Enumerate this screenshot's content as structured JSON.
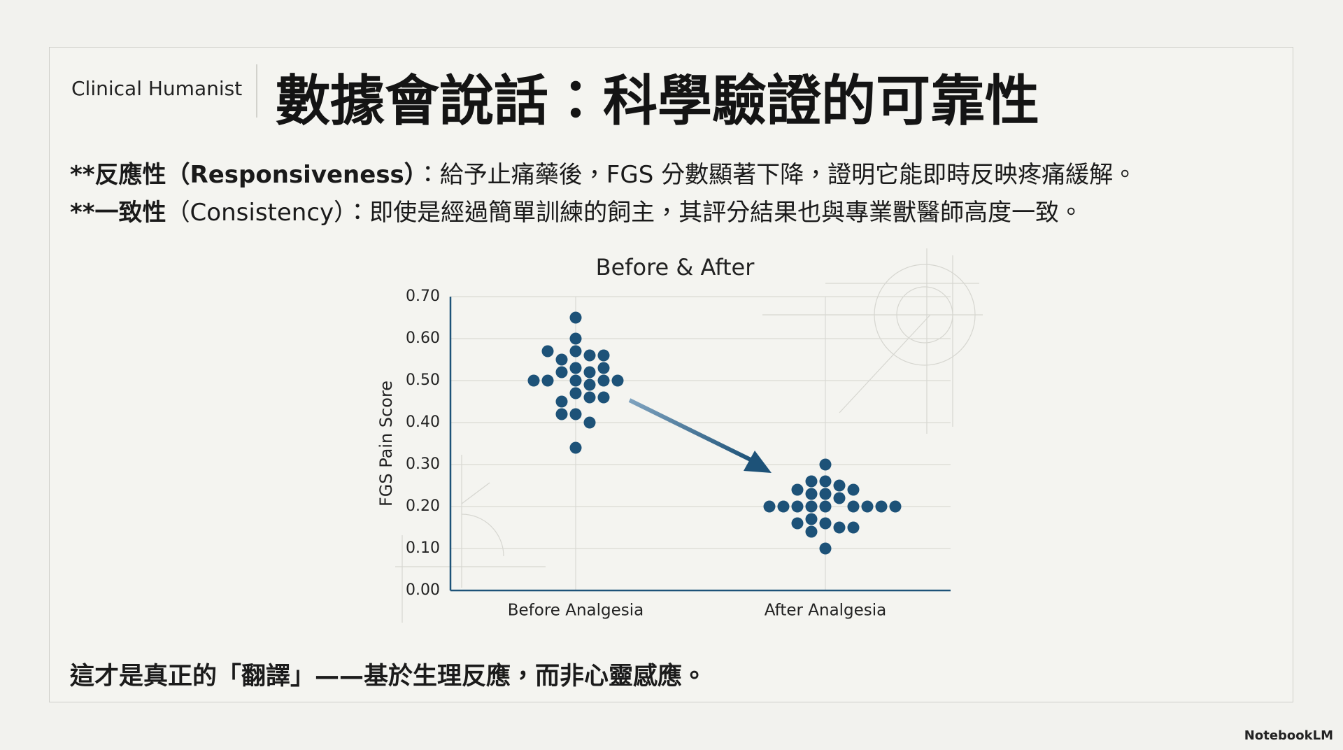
{
  "header": {
    "brand": "Clinical Humanist",
    "title": "數據會說話：科學驗證的可靠性"
  },
  "body": [
    {
      "bold": "**反應性（Responsiveness）",
      "text": "：給予止痛藥後，FGS 分數顯著下降，證明它能即時反映疼痛緩解。"
    },
    {
      "bold": "**一致性",
      "text": "（Consistency）：即使是經過簡單訓練的飼主，其評分結果也與專業獸醫師高度一致。"
    }
  ],
  "footer": "這才是真正的「翻譯」——基於生理反應，而非心靈感應。",
  "watermark": "NotebookLM",
  "chart_data": {
    "type": "strip",
    "title": "Before & After",
    "y_label": "FGS Pain Score",
    "categories": [
      "Before Analgesia",
      "After Analgesia"
    ],
    "values": [
      [
        0.65,
        0.6,
        0.57,
        0.56,
        0.55,
        0.56,
        0.57,
        0.53,
        0.52,
        0.52,
        0.53,
        0.5,
        0.5,
        0.49,
        0.5,
        0.5,
        0.5,
        0.47,
        0.46,
        0.45,
        0.46,
        0.42,
        0.4,
        0.42,
        0.34
      ],
      [
        0.3,
        0.26,
        0.25,
        0.26,
        0.24,
        0.23,
        0.22,
        0.23,
        0.24,
        0.2,
        0.2,
        0.2,
        0.2,
        0.2,
        0.2,
        0.2,
        0.2,
        0.2,
        0.16,
        0.15,
        0.17,
        0.15,
        0.16,
        0.14,
        0.1
      ]
    ],
    "color": "#1d5278",
    "ylim": [
      0,
      0.7
    ],
    "yticks": [
      {
        "value": 0,
        "label": "0.00"
      },
      {
        "value": 0.1,
        "label": "0.10"
      },
      {
        "value": 0.2,
        "label": "0.20"
      },
      {
        "value": 0.3,
        "label": "0.30"
      },
      {
        "value": 0.4,
        "label": "0.40"
      },
      {
        "value": 0.5,
        "label": "0.50"
      },
      {
        "value": 0.6,
        "label": "0.60"
      },
      {
        "value": 0.7,
        "label": "0.70"
      }
    ],
    "grid": true
  }
}
